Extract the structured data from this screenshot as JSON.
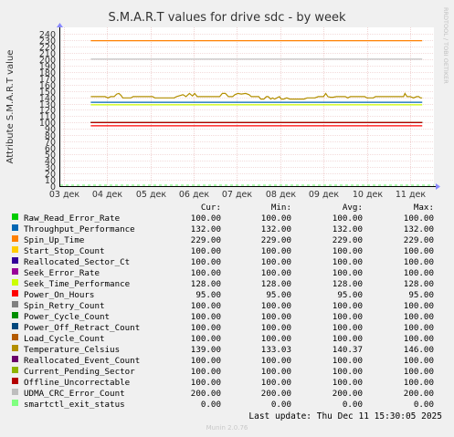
{
  "chart_data": {
    "type": "line",
    "title": "S.M.A.R.T values for drive sdc - by week",
    "ylabel": "Attribute S.M.A.R.T value",
    "watermark": "RRDTOOL / TOBI OETIKER",
    "ylim": [
      0,
      250
    ],
    "yticks": [
      0,
      10,
      20,
      30,
      40,
      50,
      60,
      70,
      80,
      90,
      100,
      110,
      120,
      130,
      140,
      150,
      160,
      170,
      180,
      190,
      200,
      210,
      220,
      230,
      240
    ],
    "xlim": [
      0,
      8.55
    ],
    "xticks": [
      {
        "label": "03 дек",
        "pos": 0
      },
      {
        "label": "04 дек",
        "pos": 1
      },
      {
        "label": "05 дек",
        "pos": 2
      },
      {
        "label": "06 дек",
        "pos": 3
      },
      {
        "label": "07 дек",
        "pos": 4
      },
      {
        "label": "08 дек",
        "pos": 5
      },
      {
        "label": "09 дек",
        "pos": 6
      },
      {
        "label": "10 дек",
        "pos": 7
      },
      {
        "label": "11 дек",
        "pos": 8
      }
    ],
    "data_start": 0.62,
    "legend_headers": [
      "Cur:",
      "Min:",
      "Avg:",
      "Max:"
    ],
    "series": [
      {
        "name": "Raw_Read_Error_Rate",
        "color": "#00cc00",
        "cur": "100.00",
        "min": "100.00",
        "avg": "100.00",
        "max": "100.00",
        "value": 100
      },
      {
        "name": "Throughput_Performance",
        "color": "#0066b3",
        "cur": "132.00",
        "min": "132.00",
        "avg": "132.00",
        "max": "132.00",
        "value": 132
      },
      {
        "name": "Spin_Up_Time",
        "color": "#ff8000",
        "cur": "229.00",
        "min": "229.00",
        "avg": "229.00",
        "max": "229.00",
        "value": 229
      },
      {
        "name": "Start_Stop_Count",
        "color": "#ffcc00",
        "cur": "100.00",
        "min": "100.00",
        "avg": "100.00",
        "max": "100.00",
        "value": 100
      },
      {
        "name": "Reallocated_Sector_Ct",
        "color": "#330099",
        "cur": "100.00",
        "min": "100.00",
        "avg": "100.00",
        "max": "100.00",
        "value": 100
      },
      {
        "name": "Seek_Error_Rate",
        "color": "#990099",
        "cur": "100.00",
        "min": "100.00",
        "avg": "100.00",
        "max": "100.00",
        "value": 100
      },
      {
        "name": "Seek_Time_Performance",
        "color": "#ccff00",
        "cur": "128.00",
        "min": "128.00",
        "avg": "128.00",
        "max": "128.00",
        "value": 128
      },
      {
        "name": "Power_On_Hours",
        "color": "#ff0000",
        "cur": "95.00",
        "min": "95.00",
        "avg": "95.00",
        "max": "95.00",
        "value": 95
      },
      {
        "name": "Spin_Retry_Count",
        "color": "#808080",
        "cur": "100.00",
        "min": "100.00",
        "avg": "100.00",
        "max": "100.00",
        "value": 100
      },
      {
        "name": "Power_Cycle_Count",
        "color": "#008f00",
        "cur": "100.00",
        "min": "100.00",
        "avg": "100.00",
        "max": "100.00",
        "value": 100
      },
      {
        "name": "Power_Off_Retract_Count",
        "color": "#00487d",
        "cur": "100.00",
        "min": "100.00",
        "avg": "100.00",
        "max": "100.00",
        "value": 100
      },
      {
        "name": "Load_Cycle_Count",
        "color": "#b35a00",
        "cur": "100.00",
        "min": "100.00",
        "avg": "100.00",
        "max": "100.00",
        "value": 100
      },
      {
        "name": "Temperature_Celsius",
        "color": "#b38f00",
        "cur": "139.00",
        "min": "133.03",
        "avg": "140.37",
        "max": "146.00",
        "value": 140,
        "trace": [
          [
            0.62,
            141
          ],
          [
            0.95,
            141
          ],
          [
            1.02,
            139
          ],
          [
            1.08,
            141
          ],
          [
            1.16,
            141
          ],
          [
            1.22,
            145
          ],
          [
            1.27,
            146
          ],
          [
            1.32,
            143
          ],
          [
            1.36,
            139
          ],
          [
            1.55,
            139
          ],
          [
            1.6,
            141
          ],
          [
            2.05,
            141
          ],
          [
            2.1,
            139
          ],
          [
            2.55,
            139
          ],
          [
            2.6,
            141
          ],
          [
            2.75,
            144
          ],
          [
            2.82,
            141
          ],
          [
            2.9,
            146
          ],
          [
            2.97,
            142
          ],
          [
            3.02,
            146
          ],
          [
            3.08,
            141
          ],
          [
            3.2,
            141
          ],
          [
            3.6,
            141
          ],
          [
            3.66,
            146
          ],
          [
            3.73,
            146
          ],
          [
            3.8,
            141
          ],
          [
            3.9,
            141
          ],
          [
            3.95,
            144
          ],
          [
            4.02,
            146
          ],
          [
            4.1,
            145
          ],
          [
            4.2,
            146
          ],
          [
            4.28,
            144
          ],
          [
            4.33,
            141
          ],
          [
            4.45,
            141
          ],
          [
            4.5,
            141
          ],
          [
            4.55,
            137
          ],
          [
            4.62,
            137
          ],
          [
            4.68,
            141
          ],
          [
            4.72,
            141
          ],
          [
            4.78,
            137
          ],
          [
            4.82,
            139
          ],
          [
            4.87,
            137
          ],
          [
            4.92,
            139
          ],
          [
            4.98,
            141
          ],
          [
            5.02,
            137
          ],
          [
            5.08,
            137
          ],
          [
            5.15,
            139
          ],
          [
            5.22,
            137
          ],
          [
            5.55,
            137
          ],
          [
            5.62,
            139
          ],
          [
            5.8,
            139
          ],
          [
            5.88,
            141
          ],
          [
            6.0,
            141
          ],
          [
            6.05,
            146
          ],
          [
            6.1,
            141
          ],
          [
            6.16,
            140
          ],
          [
            6.22,
            140
          ],
          [
            6.3,
            141
          ],
          [
            6.5,
            141
          ],
          [
            6.56,
            139
          ],
          [
            6.62,
            141
          ],
          [
            6.95,
            141
          ],
          [
            7.0,
            139
          ],
          [
            7.15,
            139
          ],
          [
            7.2,
            141
          ],
          [
            7.85,
            141
          ],
          [
            7.88,
            146
          ],
          [
            7.93,
            141
          ],
          [
            8.0,
            141
          ],
          [
            8.08,
            139
          ],
          [
            8.15,
            141
          ],
          [
            8.2,
            141
          ],
          [
            8.24,
            139
          ],
          [
            8.28,
            139
          ]
        ]
      },
      {
        "name": "Reallocated_Event_Count",
        "color": "#6b006b",
        "cur": "100.00",
        "min": "100.00",
        "avg": "100.00",
        "max": "100.00",
        "value": 100
      },
      {
        "name": "Current_Pending_Sector",
        "color": "#8fb300",
        "cur": "100.00",
        "min": "100.00",
        "avg": "100.00",
        "max": "100.00",
        "value": 100
      },
      {
        "name": "Offline_Uncorrectable",
        "color": "#b30000",
        "cur": "100.00",
        "min": "100.00",
        "avg": "100.00",
        "max": "100.00",
        "value": 100
      },
      {
        "name": "UDMA_CRC_Error_Count",
        "color": "#bebebe",
        "cur": "200.00",
        "min": "200.00",
        "avg": "200.00",
        "max": "200.00",
        "value": 200
      },
      {
        "name": "smartctl_exit_status",
        "color": "#80ff80",
        "cur": "0.00",
        "min": "0.00",
        "avg": "0.00",
        "max": "0.00",
        "value": 0
      }
    ]
  },
  "last_update": "Last update: Thu Dec 11 15:30:05 2025",
  "footer": "Munin 2.0.76"
}
